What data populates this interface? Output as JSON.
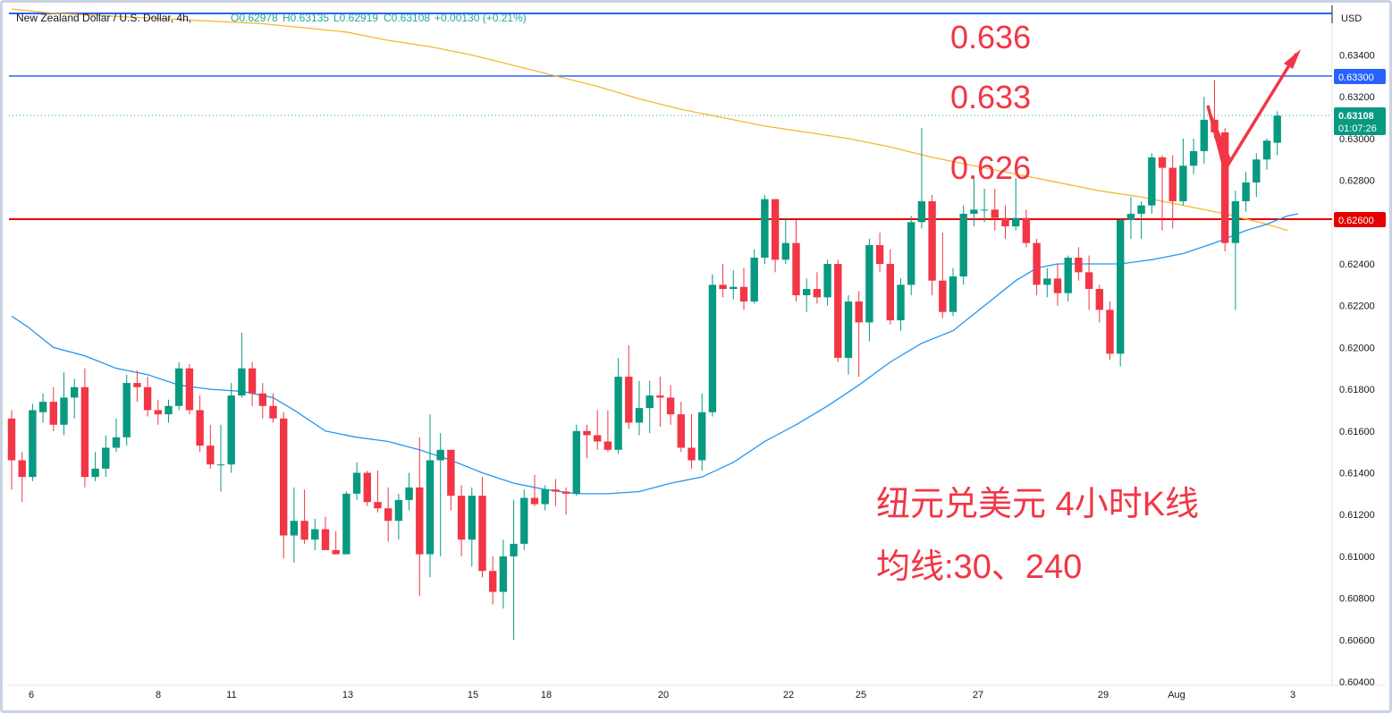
{
  "header": {
    "symbol": "New Zealand Dollar / U.S. Dollar, 4h,",
    "o": "O0.62978",
    "h": "H0.63135",
    "l": "L0.62919",
    "c": "C0.63108",
    "change": "+0.00130 (+0.21%)"
  },
  "axis": {
    "currency": "USD",
    "price_ticks": [
      "0.63400",
      "0.63200",
      "0.63000",
      "0.62800",
      "0.62400",
      "0.62200",
      "0.62000",
      "0.61800",
      "0.61600",
      "0.61400",
      "0.61200",
      "0.61000",
      "0.60800",
      "0.60600",
      "0.60400"
    ],
    "date_ticks": [
      "6",
      "8",
      "11",
      "13",
      "15",
      "18",
      "20",
      "22",
      "25",
      "27",
      "29",
      "Aug",
      "3"
    ]
  },
  "price_labels": {
    "last_price": "0.63108",
    "countdown": "01:07:26",
    "blue_level": "0.63300",
    "red_level": "0.62600"
  },
  "annotations": {
    "level_636": "0.636",
    "level_633": "0.633",
    "level_626": "0.626",
    "title_line1": "纽元兑美元 4小时K线",
    "title_line2": "均线:30、240"
  },
  "colors": {
    "up": "#089981",
    "down": "#f23645",
    "ma30": "#2196f3",
    "ma240": "#f5b731",
    "blue_line": "#2962ff",
    "red_line": "#e60000",
    "annot": "#f23645"
  },
  "chart_data": {
    "type": "candlestick",
    "timeframe": "4h",
    "ylim": [
      0.6035,
      0.6365
    ],
    "horizontal_levels": [
      0.633,
      0.626
    ],
    "candles": [
      {
        "o": 0.6166,
        "h": 0.617,
        "l": 0.6132,
        "c": 0.6146
      },
      {
        "o": 0.6146,
        "h": 0.615,
        "l": 0.6126,
        "c": 0.6138
      },
      {
        "o": 0.6138,
        "h": 0.6173,
        "l": 0.6136,
        "c": 0.617
      },
      {
        "o": 0.6169,
        "h": 0.6178,
        "l": 0.6164,
        "c": 0.6174
      },
      {
        "o": 0.6174,
        "h": 0.6181,
        "l": 0.616,
        "c": 0.6163
      },
      {
        "o": 0.6163,
        "h": 0.6188,
        "l": 0.6158,
        "c": 0.6176
      },
      {
        "o": 0.6176,
        "h": 0.6185,
        "l": 0.6166,
        "c": 0.6181
      },
      {
        "o": 0.6181,
        "h": 0.619,
        "l": 0.6133,
        "c": 0.6138
      },
      {
        "o": 0.6138,
        "h": 0.615,
        "l": 0.6136,
        "c": 0.6142
      },
      {
        "o": 0.6142,
        "h": 0.6158,
        "l": 0.6138,
        "c": 0.6152
      },
      {
        "o": 0.6152,
        "h": 0.6166,
        "l": 0.615,
        "c": 0.6157
      },
      {
        "o": 0.6157,
        "h": 0.6187,
        "l": 0.6153,
        "c": 0.6183
      },
      {
        "o": 0.6183,
        "h": 0.6189,
        "l": 0.6174,
        "c": 0.6181
      },
      {
        "o": 0.6181,
        "h": 0.6186,
        "l": 0.6167,
        "c": 0.617
      },
      {
        "o": 0.617,
        "h": 0.6175,
        "l": 0.6163,
        "c": 0.6168
      },
      {
        "o": 0.6168,
        "h": 0.6175,
        "l": 0.6164,
        "c": 0.6172
      },
      {
        "o": 0.6172,
        "h": 0.6193,
        "l": 0.617,
        "c": 0.619
      },
      {
        "o": 0.619,
        "h": 0.6192,
        "l": 0.6168,
        "c": 0.617
      },
      {
        "o": 0.617,
        "h": 0.6177,
        "l": 0.615,
        "c": 0.6153
      },
      {
        "o": 0.6153,
        "h": 0.6163,
        "l": 0.6142,
        "c": 0.6144
      },
      {
        "o": 0.6144,
        "h": 0.6163,
        "l": 0.6131,
        "c": 0.6144
      },
      {
        "o": 0.6144,
        "h": 0.6183,
        "l": 0.614,
        "c": 0.6177
      },
      {
        "o": 0.6177,
        "h": 0.6207,
        "l": 0.6176,
        "c": 0.619
      },
      {
        "o": 0.619,
        "h": 0.6193,
        "l": 0.6172,
        "c": 0.6178
      },
      {
        "o": 0.6178,
        "h": 0.6183,
        "l": 0.6166,
        "c": 0.6172
      },
      {
        "o": 0.6172,
        "h": 0.6178,
        "l": 0.6164,
        "c": 0.6166
      },
      {
        "o": 0.6166,
        "h": 0.6169,
        "l": 0.6099,
        "c": 0.611
      },
      {
        "o": 0.611,
        "h": 0.6133,
        "l": 0.6097,
        "c": 0.6117
      },
      {
        "o": 0.6117,
        "h": 0.6132,
        "l": 0.6106,
        "c": 0.6108
      },
      {
        "o": 0.6108,
        "h": 0.6118,
        "l": 0.6103,
        "c": 0.6113
      },
      {
        "o": 0.6113,
        "h": 0.6119,
        "l": 0.6104,
        "c": 0.6103
      },
      {
        "o": 0.6103,
        "h": 0.6112,
        "l": 0.6101,
        "c": 0.6101
      },
      {
        "o": 0.6101,
        "h": 0.6131,
        "l": 0.6101,
        "c": 0.613
      },
      {
        "o": 0.613,
        "h": 0.6145,
        "l": 0.6127,
        "c": 0.614
      },
      {
        "o": 0.614,
        "h": 0.6141,
        "l": 0.6124,
        "c": 0.6126
      },
      {
        "o": 0.6126,
        "h": 0.6141,
        "l": 0.6121,
        "c": 0.6123
      },
      {
        "o": 0.6123,
        "h": 0.6133,
        "l": 0.6107,
        "c": 0.6117
      },
      {
        "o": 0.6117,
        "h": 0.613,
        "l": 0.6108,
        "c": 0.6127
      },
      {
        "o": 0.6127,
        "h": 0.614,
        "l": 0.6122,
        "c": 0.6133
      },
      {
        "o": 0.6133,
        "h": 0.6157,
        "l": 0.6081,
        "c": 0.6101
      },
      {
        "o": 0.6101,
        "h": 0.6168,
        "l": 0.609,
        "c": 0.6146
      },
      {
        "o": 0.6146,
        "h": 0.6159,
        "l": 0.61,
        "c": 0.6151
      },
      {
        "o": 0.6151,
        "h": 0.6151,
        "l": 0.6122,
        "c": 0.6129
      },
      {
        "o": 0.6129,
        "h": 0.6134,
        "l": 0.61,
        "c": 0.6108
      },
      {
        "o": 0.6108,
        "h": 0.6133,
        "l": 0.6095,
        "c": 0.6129
      },
      {
        "o": 0.6129,
        "h": 0.6138,
        "l": 0.609,
        "c": 0.6093
      },
      {
        "o": 0.6093,
        "h": 0.61,
        "l": 0.6077,
        "c": 0.6083
      },
      {
        "o": 0.6083,
        "h": 0.6108,
        "l": 0.6075,
        "c": 0.61
      },
      {
        "o": 0.61,
        "h": 0.6127,
        "l": 0.606,
        "c": 0.6106
      },
      {
        "o": 0.6106,
        "h": 0.6132,
        "l": 0.6103,
        "c": 0.6128
      },
      {
        "o": 0.6128,
        "h": 0.6139,
        "l": 0.6124,
        "c": 0.6125
      },
      {
        "o": 0.6125,
        "h": 0.6134,
        "l": 0.6122,
        "c": 0.6132
      },
      {
        "o": 0.6132,
        "h": 0.6137,
        "l": 0.6124,
        "c": 0.6131
      },
      {
        "o": 0.6131,
        "h": 0.6133,
        "l": 0.612,
        "c": 0.613
      },
      {
        "o": 0.613,
        "h": 0.6163,
        "l": 0.6129,
        "c": 0.616
      },
      {
        "o": 0.616,
        "h": 0.6163,
        "l": 0.6147,
        "c": 0.6158
      },
      {
        "o": 0.6158,
        "h": 0.617,
        "l": 0.6151,
        "c": 0.6155
      },
      {
        "o": 0.6155,
        "h": 0.617,
        "l": 0.615,
        "c": 0.6151
      },
      {
        "o": 0.6151,
        "h": 0.6195,
        "l": 0.6149,
        "c": 0.6186
      },
      {
        "o": 0.6186,
        "h": 0.6201,
        "l": 0.6161,
        "c": 0.6164
      },
      {
        "o": 0.6164,
        "h": 0.6184,
        "l": 0.6158,
        "c": 0.6171
      },
      {
        "o": 0.6171,
        "h": 0.6184,
        "l": 0.6159,
        "c": 0.6177
      },
      {
        "o": 0.6177,
        "h": 0.6186,
        "l": 0.6162,
        "c": 0.6176
      },
      {
        "o": 0.6176,
        "h": 0.6182,
        "l": 0.6163,
        "c": 0.6168
      },
      {
        "o": 0.6168,
        "h": 0.6174,
        "l": 0.615,
        "c": 0.6152
      },
      {
        "o": 0.6152,
        "h": 0.6168,
        "l": 0.6142,
        "c": 0.6146
      },
      {
        "o": 0.6146,
        "h": 0.6178,
        "l": 0.6141,
        "c": 0.6169
      },
      {
        "o": 0.6169,
        "h": 0.6235,
        "l": 0.6167,
        "c": 0.623
      },
      {
        "o": 0.623,
        "h": 0.624,
        "l": 0.6224,
        "c": 0.6228
      },
      {
        "o": 0.6228,
        "h": 0.6237,
        "l": 0.6223,
        "c": 0.6229
      },
      {
        "o": 0.6229,
        "h": 0.6238,
        "l": 0.6218,
        "c": 0.6222
      },
      {
        "o": 0.6222,
        "h": 0.6247,
        "l": 0.6221,
        "c": 0.6243
      },
      {
        "o": 0.6243,
        "h": 0.6273,
        "l": 0.624,
        "c": 0.6271
      },
      {
        "o": 0.6271,
        "h": 0.6271,
        "l": 0.6236,
        "c": 0.6242
      },
      {
        "o": 0.6242,
        "h": 0.6262,
        "l": 0.624,
        "c": 0.625
      },
      {
        "o": 0.625,
        "h": 0.6261,
        "l": 0.6222,
        "c": 0.6225
      },
      {
        "o": 0.6225,
        "h": 0.6233,
        "l": 0.6217,
        "c": 0.6228
      },
      {
        "o": 0.6228,
        "h": 0.6236,
        "l": 0.6221,
        "c": 0.6224
      },
      {
        "o": 0.6224,
        "h": 0.6242,
        "l": 0.622,
        "c": 0.624
      },
      {
        "o": 0.624,
        "h": 0.6242,
        "l": 0.6193,
        "c": 0.6195
      },
      {
        "o": 0.6195,
        "h": 0.6225,
        "l": 0.6187,
        "c": 0.6222
      },
      {
        "o": 0.6222,
        "h": 0.6227,
        "l": 0.6186,
        "c": 0.6212
      },
      {
        "o": 0.6212,
        "h": 0.6252,
        "l": 0.6203,
        "c": 0.6249
      },
      {
        "o": 0.6249,
        "h": 0.6255,
        "l": 0.6236,
        "c": 0.624
      },
      {
        "o": 0.624,
        "h": 0.6247,
        "l": 0.6211,
        "c": 0.6213
      },
      {
        "o": 0.6213,
        "h": 0.6233,
        "l": 0.6208,
        "c": 0.623
      },
      {
        "o": 0.623,
        "h": 0.6263,
        "l": 0.6225,
        "c": 0.626
      },
      {
        "o": 0.626,
        "h": 0.6305,
        "l": 0.6257,
        "c": 0.627
      },
      {
        "o": 0.627,
        "h": 0.6273,
        "l": 0.6225,
        "c": 0.6232
      },
      {
        "o": 0.6232,
        "h": 0.6255,
        "l": 0.6214,
        "c": 0.6217
      },
      {
        "o": 0.6217,
        "h": 0.6238,
        "l": 0.6215,
        "c": 0.6234
      },
      {
        "o": 0.6234,
        "h": 0.6268,
        "l": 0.623,
        "c": 0.6264
      },
      {
        "o": 0.6264,
        "h": 0.6282,
        "l": 0.6258,
        "c": 0.6266
      },
      {
        "o": 0.6266,
        "h": 0.6276,
        "l": 0.626,
        "c": 0.6266
      },
      {
        "o": 0.6266,
        "h": 0.6276,
        "l": 0.6256,
        "c": 0.6262
      },
      {
        "o": 0.6262,
        "h": 0.6268,
        "l": 0.6252,
        "c": 0.6258
      },
      {
        "o": 0.6258,
        "h": 0.6281,
        "l": 0.6256,
        "c": 0.6262
      },
      {
        "o": 0.6262,
        "h": 0.6266,
        "l": 0.6248,
        "c": 0.625
      },
      {
        "o": 0.625,
        "h": 0.6252,
        "l": 0.6225,
        "c": 0.623
      },
      {
        "o": 0.623,
        "h": 0.6238,
        "l": 0.6224,
        "c": 0.6233
      },
      {
        "o": 0.6233,
        "h": 0.624,
        "l": 0.622,
        "c": 0.6226
      },
      {
        "o": 0.6226,
        "h": 0.6244,
        "l": 0.6222,
        "c": 0.6243
      },
      {
        "o": 0.6243,
        "h": 0.6248,
        "l": 0.6232,
        "c": 0.6236
      },
      {
        "o": 0.6236,
        "h": 0.6244,
        "l": 0.6218,
        "c": 0.6228
      },
      {
        "o": 0.6228,
        "h": 0.623,
        "l": 0.6212,
        "c": 0.6218
      },
      {
        "o": 0.6218,
        "h": 0.6222,
        "l": 0.6194,
        "c": 0.6197
      },
      {
        "o": 0.6197,
        "h": 0.6262,
        "l": 0.6191,
        "c": 0.6261
      },
      {
        "o": 0.6261,
        "h": 0.6272,
        "l": 0.6252,
        "c": 0.6264
      },
      {
        "o": 0.6264,
        "h": 0.627,
        "l": 0.6252,
        "c": 0.6268
      },
      {
        "o": 0.6268,
        "h": 0.6293,
        "l": 0.6264,
        "c": 0.6291
      },
      {
        "o": 0.6291,
        "h": 0.6292,
        "l": 0.6256,
        "c": 0.6286
      },
      {
        "o": 0.6286,
        "h": 0.6292,
        "l": 0.6257,
        "c": 0.627
      },
      {
        "o": 0.627,
        "h": 0.63,
        "l": 0.6268,
        "c": 0.6287
      },
      {
        "o": 0.6287,
        "h": 0.63,
        "l": 0.6283,
        "c": 0.6294
      },
      {
        "o": 0.6294,
        "h": 0.632,
        "l": 0.6288,
        "c": 0.6309
      },
      {
        "o": 0.6309,
        "h": 0.6328,
        "l": 0.63,
        "c": 0.6303
      },
      {
        "o": 0.6303,
        "h": 0.6305,
        "l": 0.6246,
        "c": 0.625
      },
      {
        "o": 0.625,
        "h": 0.6275,
        "l": 0.6218,
        "c": 0.627
      },
      {
        "o": 0.627,
        "h": 0.6284,
        "l": 0.6265,
        "c": 0.6279
      },
      {
        "o": 0.6279,
        "h": 0.6293,
        "l": 0.6272,
        "c": 0.629
      },
      {
        "o": 0.629,
        "h": 0.63,
        "l": 0.6285,
        "c": 0.6299
      },
      {
        "o": 0.6298,
        "h": 0.6313,
        "l": 0.6292,
        "c": 0.6311
      }
    ],
    "ma30": [
      [
        0,
        0.6215
      ],
      [
        1.5,
        0.621
      ],
      [
        4,
        0.62
      ],
      [
        7,
        0.6196
      ],
      [
        10,
        0.619
      ],
      [
        13,
        0.6187
      ],
      [
        16,
        0.6182
      ],
      [
        19,
        0.618
      ],
      [
        22,
        0.6179
      ],
      [
        25,
        0.6176
      ],
      [
        27,
        0.617
      ],
      [
        30,
        0.616
      ],
      [
        33,
        0.6157
      ],
      [
        36,
        0.6155
      ],
      [
        39,
        0.6151
      ],
      [
        42,
        0.6146
      ],
      [
        45,
        0.614
      ],
      [
        48,
        0.6135
      ],
      [
        51,
        0.6132
      ],
      [
        54,
        0.613
      ],
      [
        57,
        0.613
      ],
      [
        60,
        0.6131
      ],
      [
        63,
        0.6135
      ],
      [
        66,
        0.6138
      ],
      [
        69,
        0.6145
      ],
      [
        72,
        0.6155
      ],
      [
        75,
        0.6163
      ],
      [
        78,
        0.6172
      ],
      [
        81,
        0.6182
      ],
      [
        84,
        0.6193
      ],
      [
        87,
        0.6202
      ],
      [
        90,
        0.6208
      ],
      [
        93,
        0.622
      ],
      [
        96,
        0.6232
      ],
      [
        98,
        0.6238
      ],
      [
        100,
        0.624
      ],
      [
        103,
        0.624
      ],
      [
        106,
        0.624
      ],
      [
        109,
        0.6242
      ],
      [
        112,
        0.6245
      ],
      [
        115,
        0.625
      ],
      [
        118,
        0.6256
      ],
      [
        120,
        0.6259
      ],
      [
        122,
        0.6263
      ],
      [
        123,
        0.6264
      ]
    ],
    "ma240": [
      [
        0,
        0.6362
      ],
      [
        4,
        0.636
      ],
      [
        8,
        0.6359
      ],
      [
        12,
        0.6358
      ],
      [
        16,
        0.6357
      ],
      [
        20,
        0.6356
      ],
      [
        24,
        0.6355
      ],
      [
        28,
        0.6353
      ],
      [
        32,
        0.6351
      ],
      [
        36,
        0.6347
      ],
      [
        40,
        0.6344
      ],
      [
        44,
        0.634
      ],
      [
        48,
        0.6335
      ],
      [
        52,
        0.633
      ],
      [
        56,
        0.6325
      ],
      [
        60,
        0.6319
      ],
      [
        64,
        0.6314
      ],
      [
        68,
        0.631
      ],
      [
        72,
        0.6306
      ],
      [
        76,
        0.6303
      ],
      [
        80,
        0.63
      ],
      [
        84,
        0.6296
      ],
      [
        88,
        0.6291
      ],
      [
        92,
        0.6287
      ],
      [
        96,
        0.6283
      ],
      [
        100,
        0.6279
      ],
      [
        104,
        0.6275
      ],
      [
        108,
        0.6272
      ],
      [
        112,
        0.6268
      ],
      [
        116,
        0.6264
      ],
      [
        120,
        0.6259
      ],
      [
        122,
        0.6256
      ]
    ]
  }
}
